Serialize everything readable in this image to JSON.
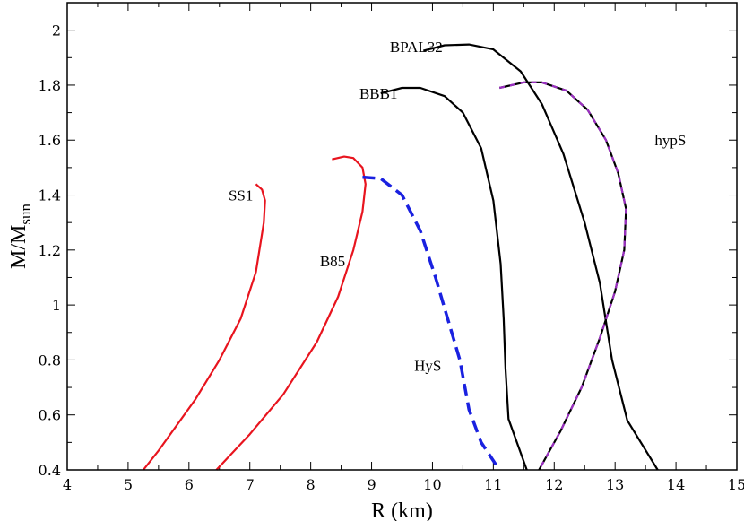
{
  "chart_data": {
    "type": "line",
    "xlabel": "R (km)",
    "ylabel_main": "M/M",
    "ylabel_sub": "sun",
    "xlim": [
      4,
      15
    ],
    "ylim": [
      0.4,
      2.1
    ],
    "x_ticks": [
      "4",
      "5",
      "6",
      "7",
      "8",
      "9",
      "10",
      "11",
      "12",
      "13",
      "14",
      "15"
    ],
    "y_ticks": [
      "0.4",
      "0.6",
      "0.8",
      "1",
      "1.2",
      "1.4",
      "1.6",
      "1.8",
      "2"
    ],
    "grid": false,
    "series": [
      {
        "name": "SS1",
        "color": "#e8141e",
        "style": "solid",
        "points": [
          [
            5.25,
            0.4
          ],
          [
            5.5,
            0.47
          ],
          [
            6.1,
            0.655
          ],
          [
            6.5,
            0.8
          ],
          [
            6.85,
            0.95
          ],
          [
            7.1,
            1.12
          ],
          [
            7.23,
            1.3
          ],
          [
            7.25,
            1.38
          ],
          [
            7.2,
            1.42
          ],
          [
            7.1,
            1.44
          ]
        ]
      },
      {
        "name": "B85",
        "color": "#e8141e",
        "style": "solid",
        "points": [
          [
            6.45,
            0.4
          ],
          [
            7.0,
            0.53
          ],
          [
            7.55,
            0.675
          ],
          [
            8.1,
            0.865
          ],
          [
            8.45,
            1.03
          ],
          [
            8.7,
            1.2
          ],
          [
            8.85,
            1.34
          ],
          [
            8.9,
            1.44
          ],
          [
            8.85,
            1.5
          ],
          [
            8.7,
            1.535
          ],
          [
            8.55,
            1.54
          ],
          [
            8.35,
            1.53
          ]
        ]
      },
      {
        "name": "HyS",
        "color": "#1a21e0",
        "style": "dashed",
        "points": [
          [
            8.85,
            1.465
          ],
          [
            9.15,
            1.46
          ],
          [
            9.5,
            1.4
          ],
          [
            9.8,
            1.27
          ],
          [
            10.05,
            1.1
          ],
          [
            10.25,
            0.95
          ],
          [
            10.45,
            0.8
          ],
          [
            10.6,
            0.62
          ],
          [
            10.8,
            0.5
          ],
          [
            11.1,
            0.4
          ]
        ]
      },
      {
        "name": "BBB1",
        "color": "#000000",
        "style": "solid",
        "points": [
          [
            9.15,
            1.77
          ],
          [
            9.5,
            1.79
          ],
          [
            9.8,
            1.79
          ],
          [
            10.2,
            1.76
          ],
          [
            10.5,
            1.7
          ],
          [
            10.8,
            1.57
          ],
          [
            11.0,
            1.38
          ],
          [
            11.12,
            1.15
          ],
          [
            11.17,
            0.95
          ],
          [
            11.2,
            0.77
          ],
          [
            11.25,
            0.585
          ],
          [
            11.55,
            0.4
          ]
        ]
      },
      {
        "name": "BPAL32",
        "color": "#000000",
        "style": "solid",
        "points": [
          [
            9.85,
            1.925
          ],
          [
            10.2,
            1.945
          ],
          [
            10.6,
            1.948
          ],
          [
            11.0,
            1.93
          ],
          [
            11.45,
            1.85
          ],
          [
            11.8,
            1.73
          ],
          [
            12.15,
            1.55
          ],
          [
            12.5,
            1.3
          ],
          [
            12.75,
            1.08
          ],
          [
            12.95,
            0.8
          ],
          [
            13.2,
            0.58
          ],
          [
            13.7,
            0.4
          ]
        ]
      },
      {
        "name": "hypS",
        "color": "#000000",
        "style": "solid",
        "overlay_color": "#9b2fc2",
        "points": [
          [
            11.1,
            1.79
          ],
          [
            11.5,
            1.81
          ],
          [
            11.8,
            1.81
          ],
          [
            12.2,
            1.78
          ],
          [
            12.55,
            1.71
          ],
          [
            12.85,
            1.6
          ],
          [
            13.05,
            1.48
          ],
          [
            13.18,
            1.35
          ],
          [
            13.15,
            1.2
          ],
          [
            13.0,
            1.05
          ],
          [
            12.75,
            0.88
          ],
          [
            12.45,
            0.7
          ],
          [
            12.1,
            0.54
          ],
          [
            11.75,
            0.4
          ]
        ]
      }
    ],
    "labels": [
      {
        "text": "SS1",
        "x": 6.65,
        "y": 1.4
      },
      {
        "text": "B85",
        "x": 8.15,
        "y": 1.16
      },
      {
        "text": "HyS",
        "x": 9.7,
        "y": 0.78
      },
      {
        "text": "BBB1",
        "x": 8.8,
        "y": 1.77
      },
      {
        "text": "BPAL32",
        "x": 9.3,
        "y": 1.94
      },
      {
        "text": "hypS",
        "x": 13.65,
        "y": 1.6
      }
    ]
  }
}
